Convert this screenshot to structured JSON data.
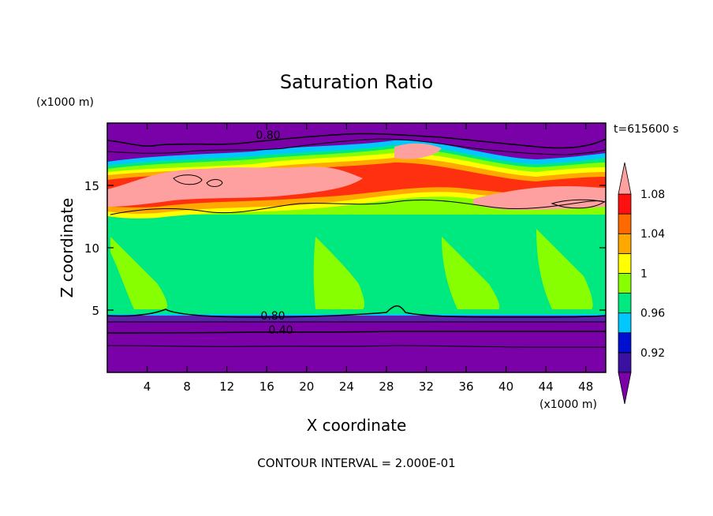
{
  "chart_data": {
    "type": "heatmap",
    "title": "Saturation Ratio",
    "xlabel": "X coordinate",
    "ylabel": "Z coordinate",
    "x_unit": "(x1000 m)",
    "y_unit": "(x1000 m)",
    "time_label": "t=615600 s",
    "footer": "CONTOUR INTERVAL = 2.000E-01",
    "xlim": [
      0,
      50
    ],
    "ylim": [
      0,
      20
    ],
    "x_ticks": [
      "4",
      "8",
      "12",
      "16",
      "20",
      "24",
      "28",
      "32",
      "36",
      "40",
      "44",
      "48"
    ],
    "y_ticks": [
      "5",
      "10",
      "15"
    ],
    "contour_labels": [
      "0.80",
      "0.80",
      "0.40"
    ],
    "colorbar": {
      "labels": [
        "0.92",
        "0.96",
        "1",
        "1.04",
        "1.08"
      ],
      "levels": [
        0.9,
        0.92,
        0.94,
        0.96,
        0.98,
        1.0,
        1.02,
        1.04,
        1.06,
        1.08,
        1.1
      ],
      "colors": [
        "#7a00a8",
        "#3a10a0",
        "#0010d0",
        "#00c8ff",
        "#00e880",
        "#88ff00",
        "#ffff00",
        "#ffa800",
        "#ff6a00",
        "#ff1010",
        "#ffa0a0"
      ]
    }
  }
}
